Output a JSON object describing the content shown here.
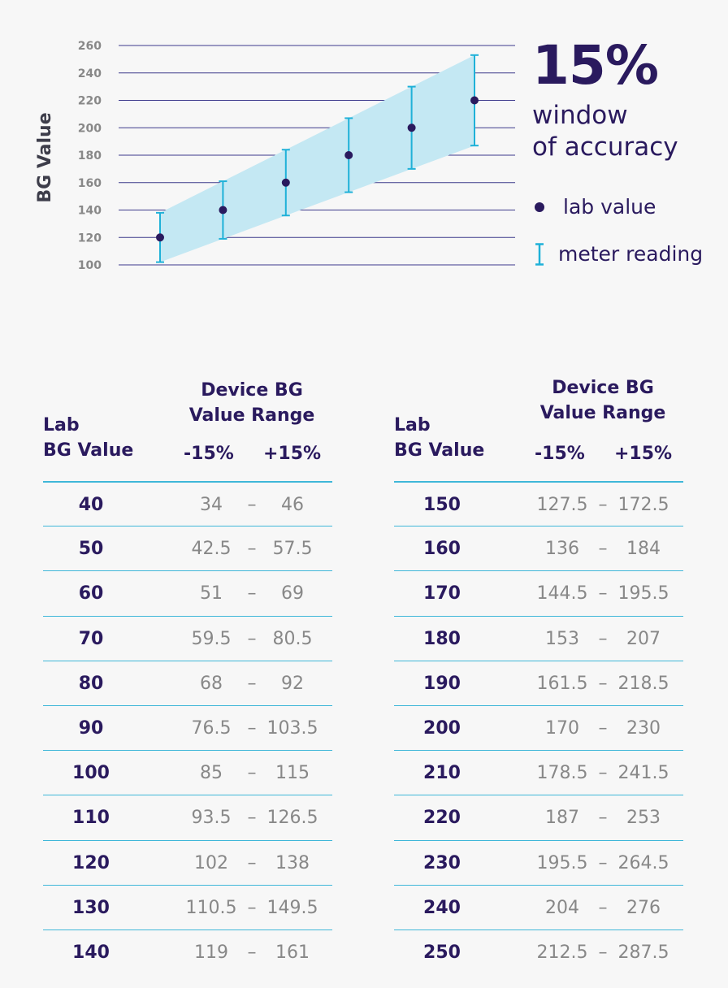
{
  "chart_data": {
    "type": "scatter",
    "ylabel": "BG Value",
    "ylim": [
      100,
      260
    ],
    "y_ticks": [
      100,
      120,
      140,
      160,
      180,
      200,
      220,
      240,
      260
    ],
    "points": [
      {
        "lab": 120,
        "low": 102,
        "high": 138
      },
      {
        "lab": 140,
        "low": 119,
        "high": 161
      },
      {
        "lab": 160,
        "low": 136,
        "high": 184
      },
      {
        "lab": 180,
        "low": 153,
        "high": 207
      },
      {
        "lab": 200,
        "low": 170,
        "high": 230
      },
      {
        "lab": 220,
        "low": 187,
        "high": 253
      }
    ],
    "band": {
      "start_low": 102,
      "start_high": 138,
      "end_low": 187,
      "end_high": 253
    },
    "grid": true,
    "colors": {
      "dot": "#2a1a5e",
      "bar": "#1fb1d8",
      "band": "#c4e8f3",
      "grid": "#3d3a8c"
    }
  },
  "legend": {
    "headline": "15%",
    "line1": "window",
    "line2": "of accuracy",
    "lab_value": "lab value",
    "meter_reading": "meter reading"
  },
  "table": {
    "header_lab_line1": "Lab",
    "header_lab_line2": "BG Value",
    "header_device_line1": "Device BG",
    "header_device_line2": "Value Range",
    "minus_label": "-15%",
    "plus_label": "+15%",
    "dash": "–",
    "left_rows": [
      {
        "lab": "40",
        "low": "34",
        "high": "46"
      },
      {
        "lab": "50",
        "low": "42.5",
        "high": "57.5"
      },
      {
        "lab": "60",
        "low": "51",
        "high": "69"
      },
      {
        "lab": "70",
        "low": "59.5",
        "high": "80.5"
      },
      {
        "lab": "80",
        "low": "68",
        "high": "92"
      },
      {
        "lab": "90",
        "low": "76.5",
        "high": "103.5"
      },
      {
        "lab": "100",
        "low": "85",
        "high": "115"
      },
      {
        "lab": "110",
        "low": "93.5",
        "high": "126.5"
      },
      {
        "lab": "120",
        "low": "102",
        "high": "138"
      },
      {
        "lab": "130",
        "low": "110.5",
        "high": "149.5"
      },
      {
        "lab": "140",
        "low": "119",
        "high": "161"
      }
    ],
    "right_rows": [
      {
        "lab": "150",
        "low": "127.5",
        "high": "172.5"
      },
      {
        "lab": "160",
        "low": "136",
        "high": "184"
      },
      {
        "lab": "170",
        "low": "144.5",
        "high": "195.5"
      },
      {
        "lab": "180",
        "low": "153",
        "high": "207"
      },
      {
        "lab": "190",
        "low": "161.5",
        "high": "218.5"
      },
      {
        "lab": "200",
        "low": "170",
        "high": "230"
      },
      {
        "lab": "210",
        "low": "178.5",
        "high": "241.5"
      },
      {
        "lab": "220",
        "low": "187",
        "high": "253"
      },
      {
        "lab": "230",
        "low": "195.5",
        "high": "264.5"
      },
      {
        "lab": "240",
        "low": "204",
        "high": "276"
      },
      {
        "lab": "250",
        "low": "212.5",
        "high": "287.5"
      }
    ]
  }
}
